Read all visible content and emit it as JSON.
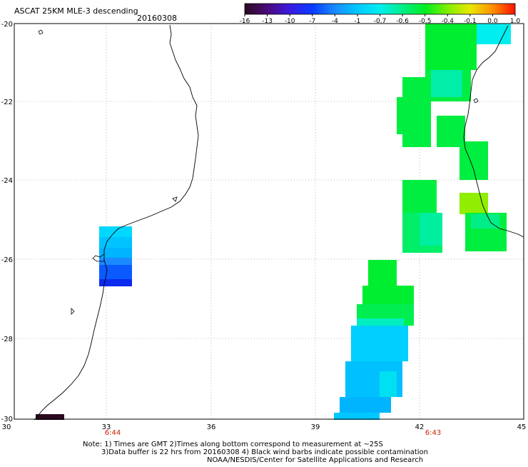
{
  "title": "ASCAT 25KM MLE-3 descending",
  "date": "20160308",
  "colorbar": {
    "labels": [
      "-16",
      "-13",
      "-10",
      "-7",
      "-4",
      "-1",
      "-0.7",
      "-0.6",
      "-0.5",
      "-0.4",
      "-0.1",
      "0.0",
      "1.0"
    ],
    "colors": [
      "#2a0a1e",
      "#4a0a7a",
      "#3a1ae0",
      "#0a3aff",
      "#1a8aff",
      "#00c8ff",
      "#00eef0",
      "#00ee88",
      "#00ee20",
      "#80ee00",
      "#e8e800",
      "#ff9000",
      "#ff1000"
    ]
  },
  "lat_labels": [
    "-20",
    "-22",
    "-24",
    "-26",
    "-28",
    "-30"
  ],
  "lon_labels": [
    "30",
    "33",
    "36",
    "39",
    "42",
    "45"
  ],
  "times": [
    {
      "label": "6:44",
      "lon": 33
    },
    {
      "label": "6:43",
      "lon": 42
    }
  ],
  "notes": {
    "line1": "Note: 1) Times are GMT 2)Times along bottom correspond to measurement at ~25S",
    "line2": "3)Data buffer is 22 hrs from 20160308 4) Black wind barbs indicate possible contamination",
    "line3": "NOAA/NESDIS/Center for Satellite Applications and Research"
  },
  "colors": {
    "tick_time": "#cc2200",
    "grid": "#888888"
  }
}
